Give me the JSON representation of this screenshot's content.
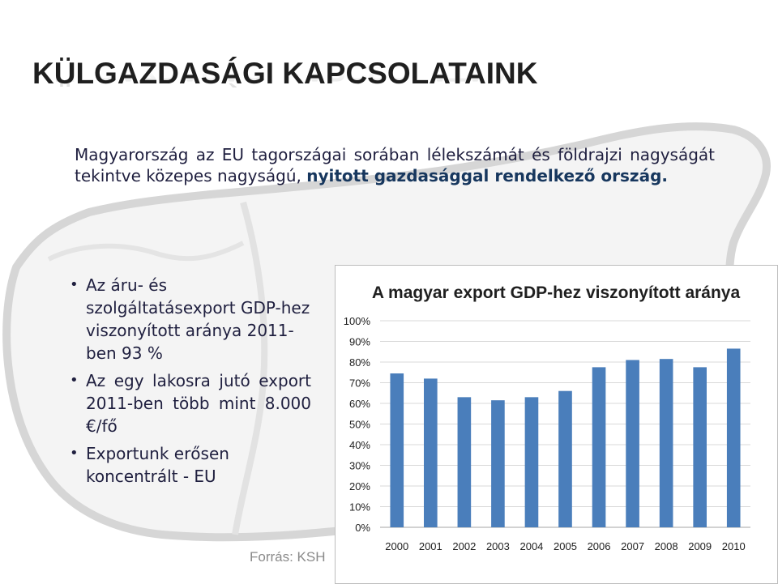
{
  "slide": {
    "title": "KÜLGAZDASÁGI KAPCSOLATAINK",
    "intro_plain": "Magyarország az EU tagországai sorában lélekszámát és földrajzi nagyságát tekintve közepes nagyságú, ",
    "intro_bold": "nyitott gazdasággal rendelkező ország.",
    "bullets": [
      "Az áru- és szolgáltatásexport GDP-hez viszonyított aránya 2011-ben 93 %",
      "Az egy lakosra jutó export 2011-ben több mint 8.000 €/fő",
      "Exportunk erősen koncentrált - EU"
    ],
    "source": "Forrás: KSH"
  },
  "colors": {
    "bar": "#4a7ebb",
    "grid": "#d9d9d9",
    "title_text": "#1f1f1f",
    "bold_text": "#17375e"
  },
  "chart_data": {
    "type": "bar",
    "title": "A magyar export GDP-hez viszonyított aránya",
    "xlabel": "",
    "ylabel": "",
    "categories": [
      "2000",
      "2001",
      "2002",
      "2003",
      "2004",
      "2005",
      "2006",
      "2007",
      "2008",
      "2009",
      "2010"
    ],
    "values": [
      74.5,
      72,
      63,
      61.5,
      63,
      66,
      77.5,
      81,
      81.5,
      77.5,
      86.5
    ],
    "ylim": [
      0,
      100
    ],
    "yticks": [
      "0%",
      "10%",
      "20%",
      "30%",
      "40%",
      "50%",
      "60%",
      "70%",
      "80%",
      "90%",
      "100%"
    ],
    "grid": true,
    "legend": "none"
  }
}
